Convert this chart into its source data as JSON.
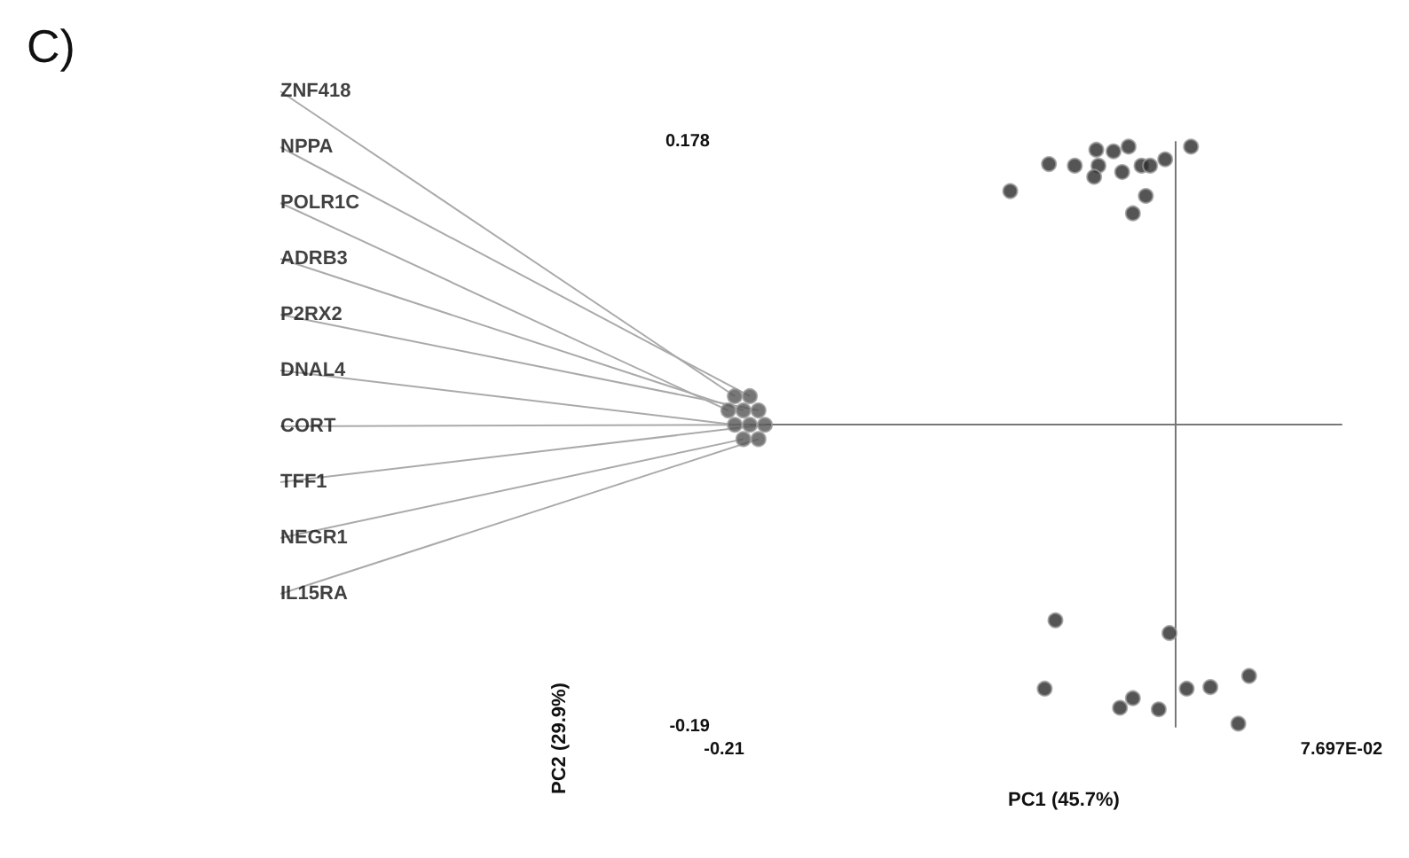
{
  "chart_data": {
    "type": "scatter",
    "title": "C)",
    "xlabel": "PC1 (45.7%)",
    "ylabel": "PC2 (29.9%)",
    "xlim": [
      -0.21,
      0.07697
    ],
    "ylim": [
      -0.19,
      0.178
    ],
    "xticks": [
      {
        "value": -0.21,
        "label": "-0.21"
      },
      {
        "value": 0.07697,
        "label": "7.697E-02"
      }
    ],
    "yticks": [
      -0.19,
      0.178
    ],
    "grid": false,
    "marker": "circle",
    "series": [
      {
        "color": "#2b2b2b",
        "x": [
          -0.077,
          -0.059,
          -0.047,
          -0.037,
          -0.029,
          -0.022,
          -0.036,
          -0.038,
          -0.025,
          -0.016,
          -0.012,
          -0.005,
          0.007,
          -0.014,
          -0.02,
          -0.056,
          -0.061,
          -0.003,
          -0.026,
          -0.02,
          -0.008,
          0.005,
          0.016,
          0.034,
          0.029
        ],
        "values": [
          0.147,
          0.164,
          0.163,
          0.173,
          0.172,
          0.175,
          0.163,
          0.156,
          0.159,
          0.163,
          0.163,
          0.167,
          0.175,
          0.144,
          0.133,
          -0.123,
          -0.166,
          -0.131,
          -0.178,
          -0.172,
          -0.179,
          -0.166,
          -0.165,
          -0.158,
          -0.188
        ]
      },
      {
        "color": "#555555",
        "x": [
          -0.205,
          -0.198,
          -0.208,
          -0.201,
          -0.194,
          -0.205,
          -0.198,
          -0.191,
          -0.201,
          -0.194
        ],
        "values": [
          0.018,
          0.018,
          0.009,
          0.009,
          0.009,
          0.0,
          0.0,
          0.0,
          -0.009,
          -0.009
        ]
      }
    ],
    "annotations": [
      {
        "text": "ZNF418",
        "x": -0.205,
        "y": 0.018
      },
      {
        "text": "NPPA",
        "x": -0.198,
        "y": 0.018
      },
      {
        "text": "POLR1C",
        "x": -0.208,
        "y": 0.009
      },
      {
        "text": "ADRB3",
        "x": -0.201,
        "y": 0.009
      },
      {
        "text": "P2RX2",
        "x": -0.194,
        "y": 0.009
      },
      {
        "text": "DNAL4",
        "x": -0.205,
        "y": 0.0
      },
      {
        "text": "CORT",
        "x": -0.198,
        "y": 0.0
      },
      {
        "text": "TFF1",
        "x": -0.191,
        "y": 0.0
      },
      {
        "text": "NEGR1",
        "x": -0.201,
        "y": -0.009
      },
      {
        "text": "IL15RA",
        "x": -0.194,
        "y": -0.009
      }
    ]
  }
}
